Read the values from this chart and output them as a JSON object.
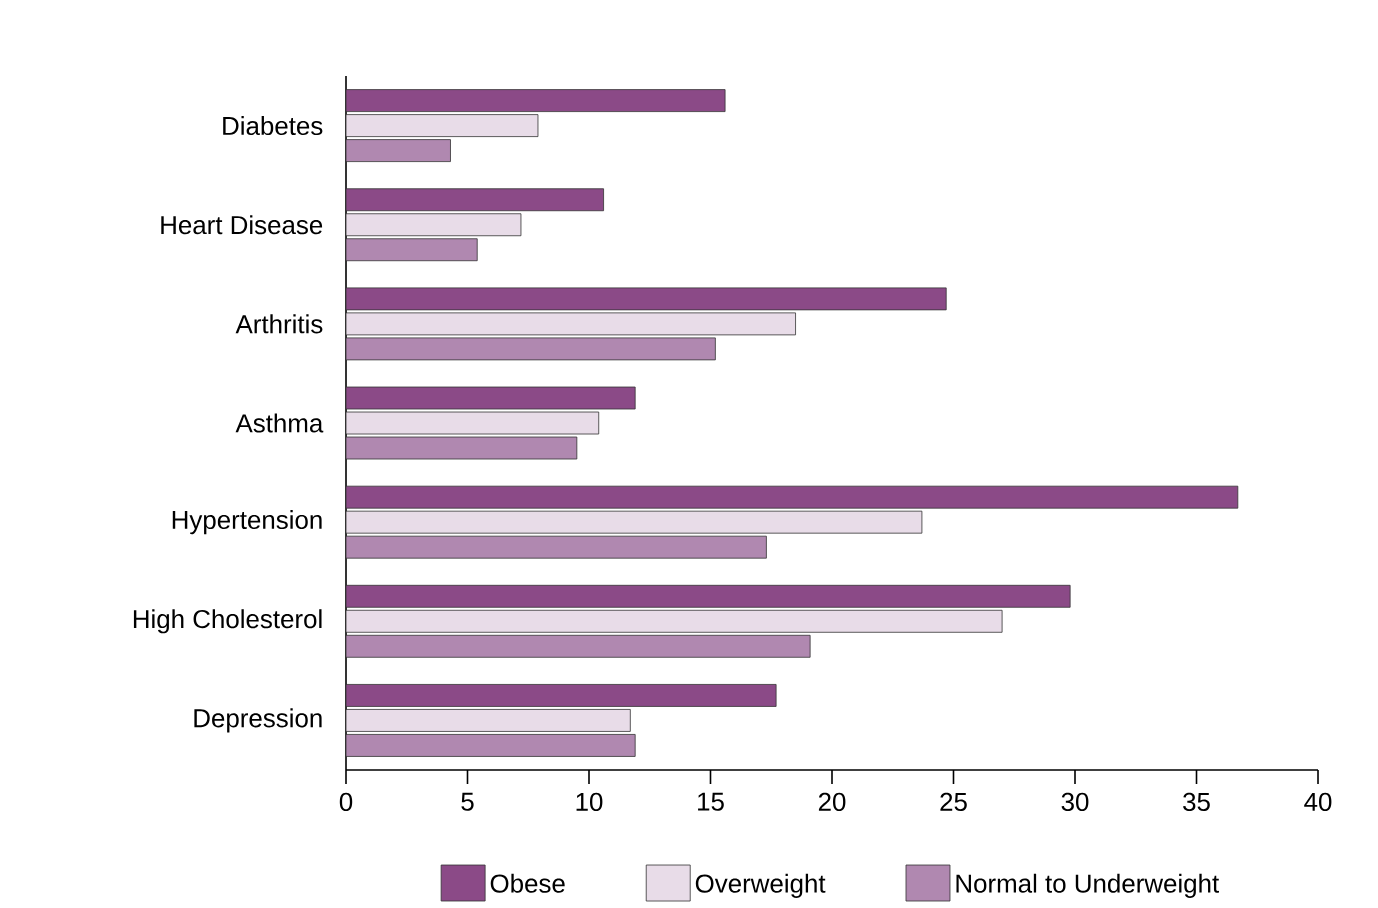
{
  "chart_data": {
    "type": "bar",
    "orientation": "horizontal",
    "categories": [
      "Diabetes",
      "Heart Disease",
      "Arthritis",
      "Asthma",
      "Hypertension",
      "High Cholesterol",
      "Depression"
    ],
    "series": [
      {
        "name": "Obese",
        "color": "#8b4a87",
        "values": [
          15.6,
          10.6,
          24.7,
          11.9,
          36.7,
          29.8,
          17.7
        ]
      },
      {
        "name": "Overweight",
        "color": "#e8dce8",
        "values": [
          7.9,
          7.2,
          18.5,
          10.4,
          23.7,
          27.0,
          11.7
        ]
      },
      {
        "name": "Normal to Underweight",
        "color": "#b088b0",
        "values": [
          4.3,
          5.4,
          15.2,
          9.5,
          17.3,
          19.1,
          11.9
        ]
      }
    ],
    "xlim": [
      0,
      40
    ],
    "xticks": [
      0,
      5,
      10,
      15,
      20,
      25,
      30,
      35,
      40
    ],
    "grid": false,
    "legend": "bottom"
  }
}
